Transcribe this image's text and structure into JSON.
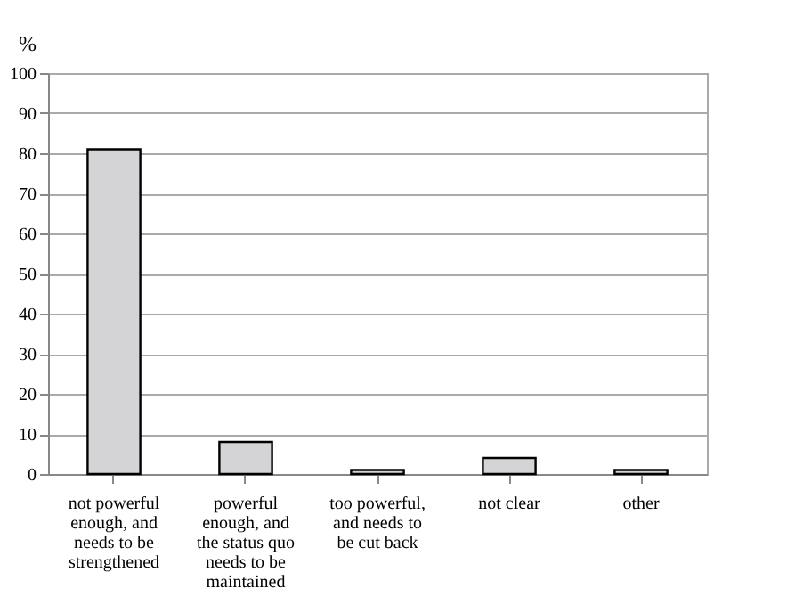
{
  "chart_data": {
    "type": "bar",
    "ylabel": "%",
    "categories": [
      "not powerful enough, and needs to be strengthened",
      "powerful enough, and the status quo needs to be maintained",
      "too powerful, and needs to be cut back",
      "not clear",
      "other"
    ],
    "values": [
      81,
      8,
      1,
      4,
      1
    ],
    "color": "#d4d4d6",
    "ylim": [
      0,
      100
    ],
    "yticks": [
      0,
      10,
      20,
      30,
      40,
      50,
      60,
      70,
      80,
      90,
      100
    ],
    "grid": "y"
  }
}
